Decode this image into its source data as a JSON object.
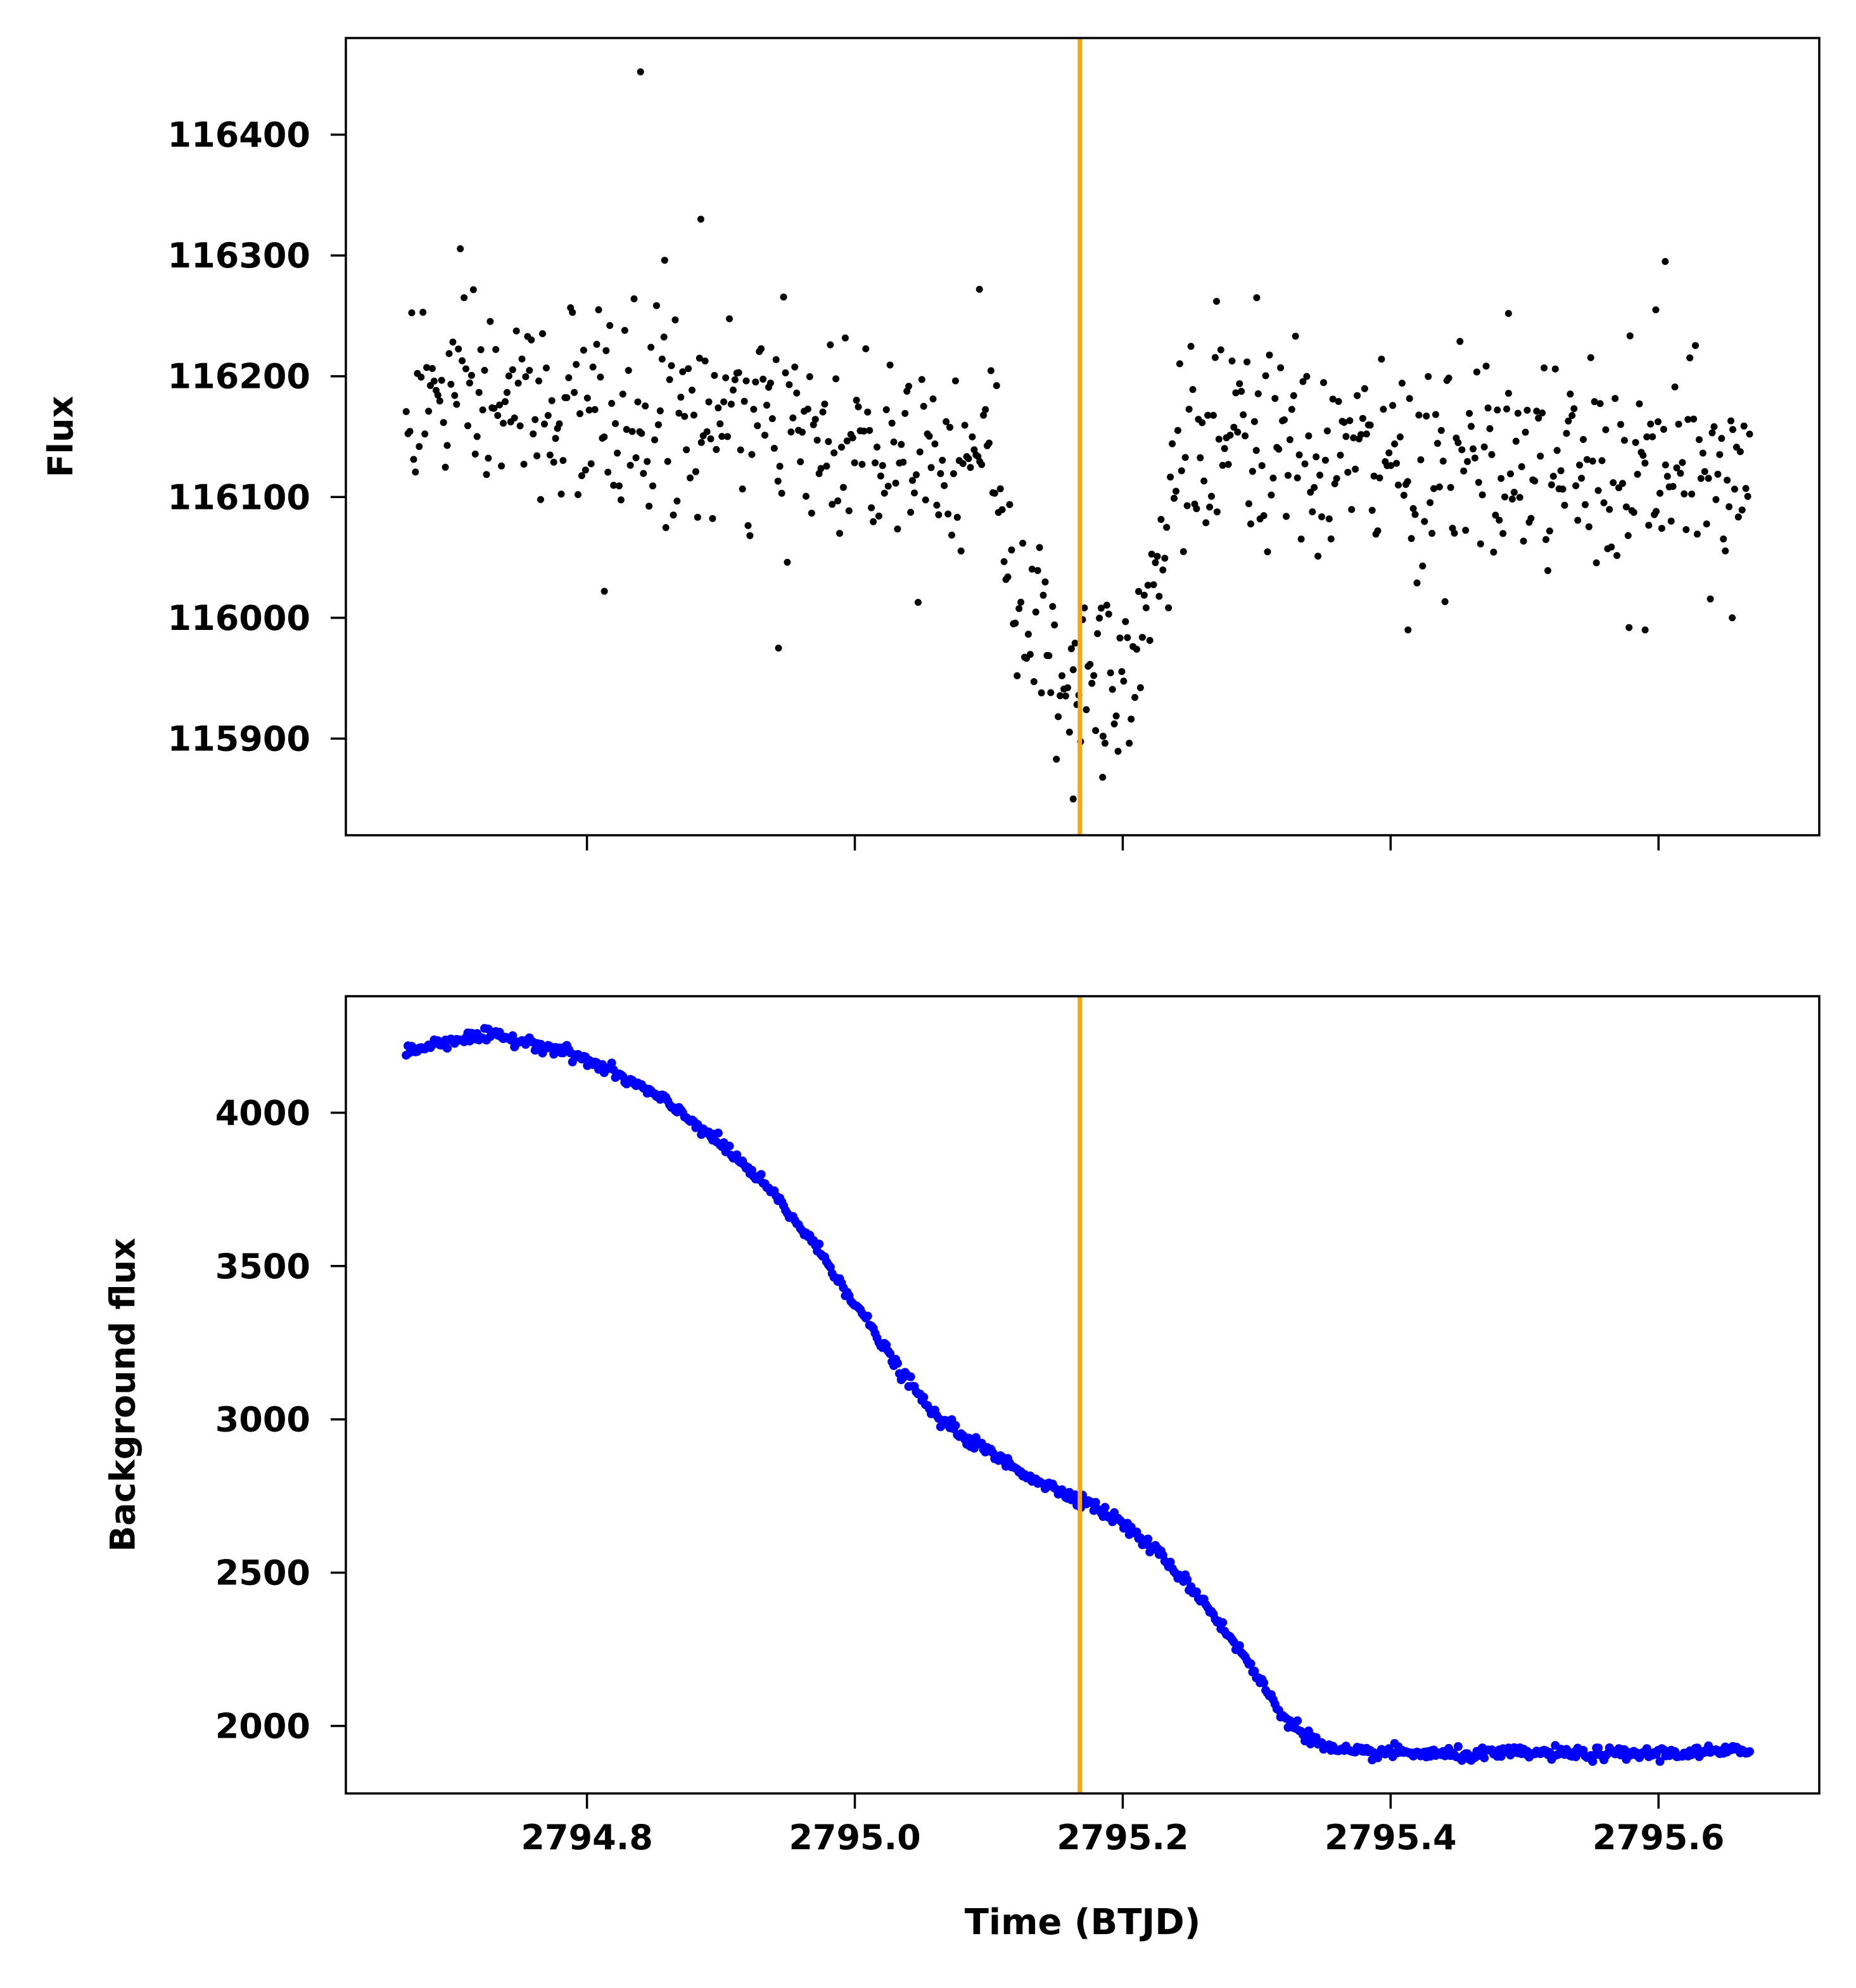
{
  "chart_data": [
    {
      "type": "scatter",
      "title": "",
      "xlabel": "",
      "ylabel": "Flux",
      "xlim": [
        2794.62,
        2795.72
      ],
      "ylim": [
        115820,
        116480
      ],
      "xticks": [
        2794.8,
        2795.0,
        2795.2,
        2795.4,
        2795.6
      ],
      "xtick_labels": [],
      "yticks": [
        115900,
        116000,
        116100,
        116200,
        116300,
        116400
      ],
      "ytick_labels": [
        "115900",
        "116000",
        "116100",
        "116200",
        "116300",
        "116400"
      ],
      "marker_color": "#000000",
      "vline": {
        "x": 2795.168,
        "color": "#FFA500"
      },
      "series": [
        {
          "segments": [
            {
              "x0": 2794.665,
              "x1": 2795.0,
              "base": 116185,
              "slope": -110,
              "noise": 42
            },
            {
              "x0": 2795.0,
              "x1": 2795.11,
              "base": 116150,
              "slope": -150,
              "noise": 40
            },
            {
              "x0": 2795.11,
              "x1": 2795.145,
              "base": 116060,
              "slope": -2800,
              "noise": 38
            },
            {
              "x0": 2795.145,
              "x1": 2795.195,
              "base": 115960,
              "slope": 0,
              "noise": 45
            },
            {
              "x0": 2795.195,
              "x1": 2795.235,
              "base": 115960,
              "slope": 2500,
              "noise": 45
            },
            {
              "x0": 2795.235,
              "x1": 2795.668,
              "base": 116140,
              "slope": -60,
              "noise": 42
            }
          ],
          "count": 720,
          "outliers": [
            {
              "x": 2794.84,
              "y": 116452
            },
            {
              "x": 2794.885,
              "y": 116330
            },
            {
              "x": 2794.858,
              "y": 116296
            },
            {
              "x": 2794.813,
              "y": 116022
            },
            {
              "x": 2794.943,
              "y": 115975
            },
            {
              "x": 2795.163,
              "y": 115850
            },
            {
              "x": 2795.185,
              "y": 115868
            },
            {
              "x": 2795.605,
              "y": 116295
            },
            {
              "x": 2795.598,
              "y": 116255
            },
            {
              "x": 2795.488,
              "y": 116252
            },
            {
              "x": 2795.3,
              "y": 116265
            },
            {
              "x": 2795.27,
              "y": 116262
            },
            {
              "x": 2795.093,
              "y": 116272
            },
            {
              "x": 2795.413,
              "y": 115990
            },
            {
              "x": 2795.59,
              "y": 115990
            },
            {
              "x": 2795.578,
              "y": 115992
            },
            {
              "x": 2795.655,
              "y": 116000
            }
          ]
        }
      ]
    },
    {
      "type": "scatter",
      "title": "",
      "xlabel": "Time (BTJD)",
      "ylabel": "Background flux",
      "xlim": [
        2794.62,
        2795.72
      ],
      "ylim": [
        1780,
        4380
      ],
      "xticks": [
        2794.8,
        2795.0,
        2795.2,
        2795.4,
        2795.6
      ],
      "xtick_labels": [
        "2794.8",
        "2795.0",
        "2795.2",
        "2795.4",
        "2795.6"
      ],
      "yticks": [
        2000,
        2500,
        3000,
        3500,
        4000
      ],
      "ytick_labels": [
        "2000",
        "2500",
        "3000",
        "3500",
        "4000"
      ],
      "marker_color": "#0000FF",
      "vline": {
        "x": 2795.168,
        "color": "#FFA500"
      },
      "series": [
        {
          "curve": {
            "x": [
              2794.665,
              2794.7,
              2794.73,
              2794.76,
              2794.79,
              2794.82,
              2794.85,
              2794.88,
              2794.91,
              2794.94,
              2794.97,
              2795.0,
              2795.03,
              2795.06,
              2795.09,
              2795.12,
              2795.15,
              2795.17,
              2795.2,
              2795.23,
              2795.26,
              2795.29,
              2795.32,
              2795.35,
              2795.37,
              2795.4,
              2795.45,
              2795.5,
              2795.55,
              2795.6,
              2795.668
            ],
            "y": [
              4200,
              4240,
              4250,
              4230,
              4190,
              4130,
              4060,
              3970,
              3860,
              3730,
              3570,
              3380,
              3180,
              3010,
              2920,
              2840,
              2770,
              2740,
              2660,
              2550,
              2410,
              2230,
              2030,
              1930,
              1910,
              1915,
              1905,
              1912,
              1908,
              1910,
              1918
            ]
          },
          "count": 720,
          "noise": 10
        }
      ]
    }
  ]
}
